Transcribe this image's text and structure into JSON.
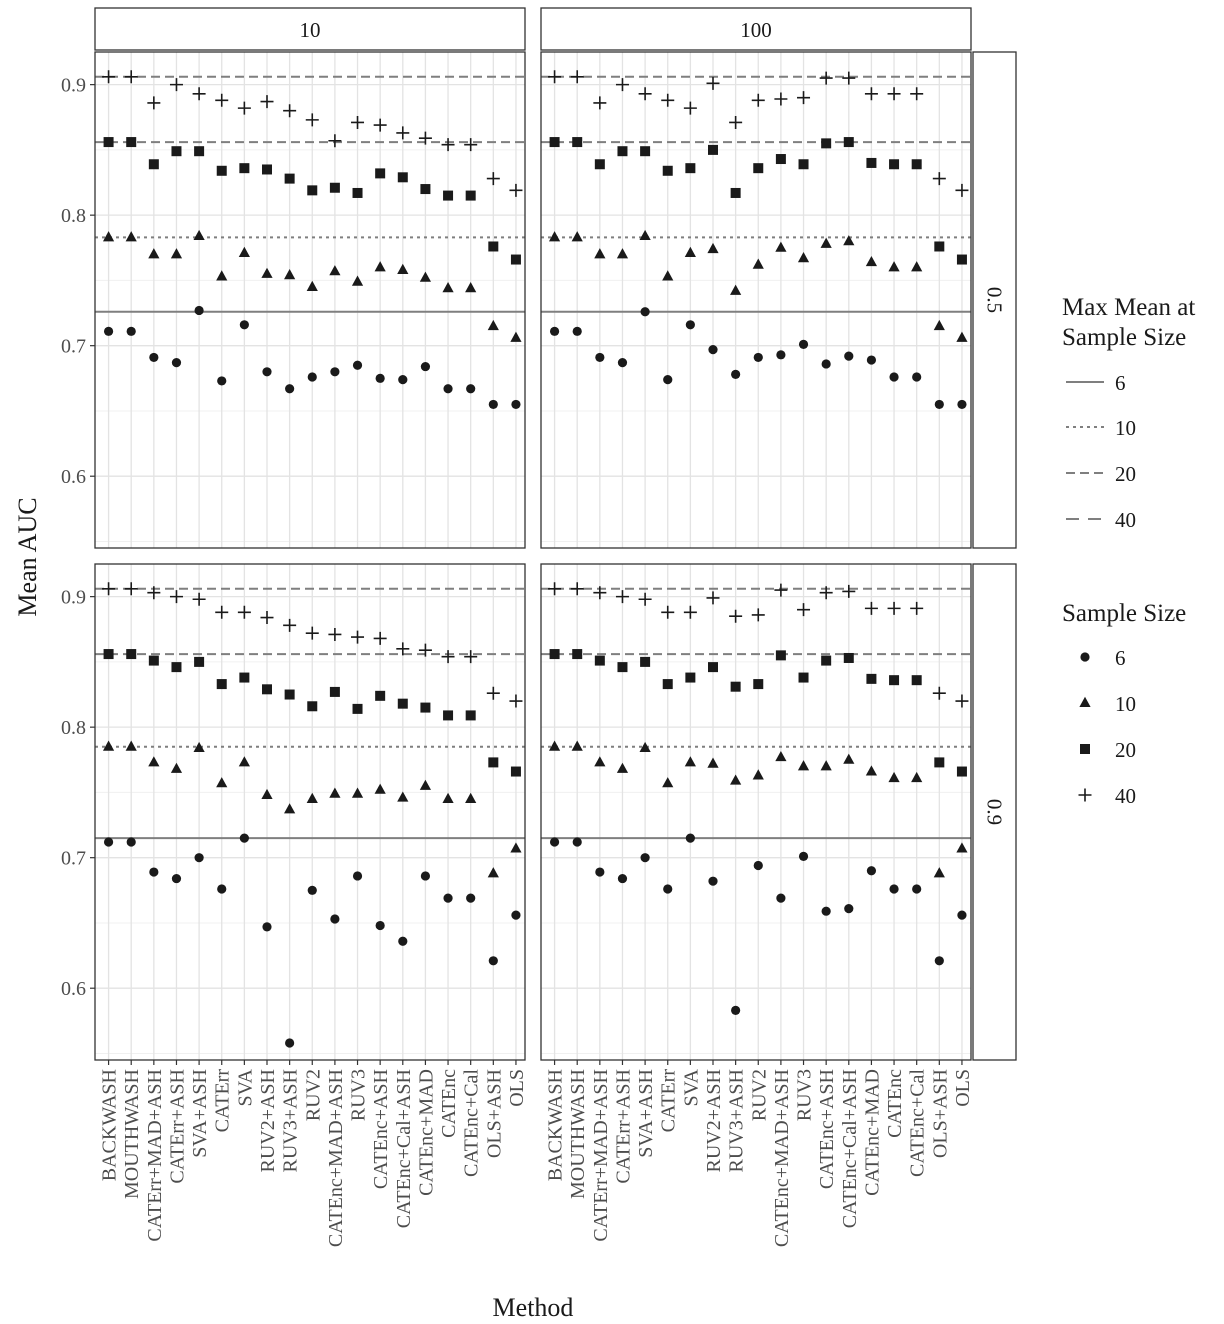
{
  "chart_data": {
    "type": "scatter",
    "xlabel": "Method",
    "ylabel": "Mean AUC",
    "ylim": [
      0.545,
      0.925
    ],
    "yticks": [
      0.6,
      0.7,
      0.8,
      0.9
    ],
    "grid": true,
    "facets": {
      "columns": [
        "10",
        "100"
      ],
      "rows": [
        "0.5",
        "0.9"
      ]
    },
    "categories": [
      "BACKWASH",
      "MOUTHWASH",
      "CATErr+MAD+ASH",
      "CATErr+ASH",
      "SVA+ASH",
      "CATErr",
      "SVA",
      "RUV2+ASH",
      "RUV3+ASH",
      "RUV2",
      "CATEnc+MAD+ASH",
      "RUV3",
      "CATEnc+ASH",
      "CATEnc+Cal+ASH",
      "CATEnc+MAD",
      "CATEnc",
      "CATEnc+Cal",
      "OLS+ASH",
      "OLS"
    ],
    "legend": {
      "placement": "right",
      "lines_title": "Max Mean at Sample Size",
      "lines": [
        {
          "label": "6",
          "style": "solid"
        },
        {
          "label": "10",
          "style": "dotted"
        },
        {
          "label": "20",
          "style": "dashed"
        },
        {
          "label": "40",
          "style": "longdash"
        }
      ],
      "shapes_title": "Sample Size",
      "shapes": [
        {
          "label": "6",
          "shape": "circle"
        },
        {
          "label": "10",
          "shape": "triangle"
        },
        {
          "label": "20",
          "shape": "square"
        },
        {
          "label": "40",
          "shape": "plus"
        }
      ]
    },
    "panels": [
      {
        "col": "10",
        "row": "0.5",
        "hlines": {
          "6": 0.726,
          "10": 0.783,
          "20": 0.856,
          "40": 0.906
        },
        "series": [
          {
            "name": "6",
            "values": [
              0.711,
              0.711,
              0.691,
              0.687,
              0.727,
              0.673,
              0.716,
              0.68,
              0.667,
              0.676,
              0.68,
              0.685,
              0.675,
              0.674,
              0.684,
              0.667,
              0.667,
              0.655,
              0.655
            ]
          },
          {
            "name": "10",
            "values": [
              0.783,
              0.783,
              0.77,
              0.77,
              0.784,
              0.753,
              0.771,
              0.755,
              0.754,
              0.745,
              0.757,
              0.749,
              0.76,
              0.758,
              0.752,
              0.744,
              0.744,
              0.715,
              0.706
            ]
          },
          {
            "name": "20",
            "values": [
              0.856,
              0.856,
              0.839,
              0.849,
              0.849,
              0.834,
              0.836,
              0.835,
              0.828,
              0.819,
              0.821,
              0.817,
              0.832,
              0.829,
              0.82,
              0.815,
              0.815,
              0.776,
              0.766
            ]
          },
          {
            "name": "40",
            "values": [
              0.906,
              0.906,
              0.886,
              0.9,
              0.893,
              0.888,
              0.882,
              0.887,
              0.88,
              0.873,
              0.857,
              0.871,
              0.869,
              0.863,
              0.859,
              0.854,
              0.854,
              0.828,
              0.819
            ]
          }
        ]
      },
      {
        "col": "100",
        "row": "0.5",
        "hlines": {
          "6": 0.726,
          "10": 0.783,
          "20": 0.856,
          "40": 0.906
        },
        "series": [
          {
            "name": "6",
            "values": [
              0.711,
              0.711,
              0.691,
              0.687,
              0.726,
              0.674,
              0.716,
              0.697,
              0.678,
              0.691,
              0.693,
              0.701,
              0.686,
              0.692,
              0.689,
              0.676,
              0.676,
              0.655,
              0.655
            ]
          },
          {
            "name": "10",
            "values": [
              0.783,
              0.783,
              0.77,
              0.77,
              0.784,
              0.753,
              0.771,
              0.774,
              0.742,
              0.762,
              0.775,
              0.767,
              0.778,
              0.78,
              0.764,
              0.76,
              0.76,
              0.715,
              0.706
            ]
          },
          {
            "name": "20",
            "values": [
              0.856,
              0.856,
              0.839,
              0.849,
              0.849,
              0.834,
              0.836,
              0.85,
              0.817,
              0.836,
              0.843,
              0.839,
              0.855,
              0.856,
              0.84,
              0.839,
              0.839,
              0.776,
              0.766
            ]
          },
          {
            "name": "40",
            "values": [
              0.906,
              0.906,
              0.886,
              0.9,
              0.893,
              0.888,
              0.882,
              0.901,
              0.871,
              0.888,
              0.889,
              0.89,
              0.905,
              0.905,
              0.893,
              0.893,
              0.893,
              0.828,
              0.819
            ]
          }
        ]
      },
      {
        "col": "10",
        "row": "0.9",
        "hlines": {
          "6": 0.715,
          "10": 0.785,
          "20": 0.856,
          "40": 0.906
        },
        "series": [
          {
            "name": "6",
            "values": [
              0.712,
              0.712,
              0.689,
              0.684,
              0.7,
              0.676,
              0.715,
              0.647,
              0.558,
              0.675,
              0.653,
              0.686,
              0.648,
              0.636,
              0.686,
              0.669,
              0.669,
              0.621,
              0.656
            ]
          },
          {
            "name": "10",
            "values": [
              0.785,
              0.785,
              0.773,
              0.768,
              0.784,
              0.757,
              0.773,
              0.748,
              0.737,
              0.745,
              0.749,
              0.749,
              0.752,
              0.746,
              0.755,
              0.745,
              0.745,
              0.688,
              0.707
            ]
          },
          {
            "name": "20",
            "values": [
              0.856,
              0.856,
              0.851,
              0.846,
              0.85,
              0.833,
              0.838,
              0.829,
              0.825,
              0.816,
              0.827,
              0.814,
              0.824,
              0.818,
              0.815,
              0.809,
              0.809,
              0.773,
              0.766
            ]
          },
          {
            "name": "40",
            "values": [
              0.906,
              0.906,
              0.903,
              0.9,
              0.898,
              0.888,
              0.888,
              0.884,
              0.878,
              0.872,
              0.871,
              0.869,
              0.868,
              0.86,
              0.859,
              0.854,
              0.854,
              0.826,
              0.82
            ]
          }
        ]
      },
      {
        "col": "100",
        "row": "0.9",
        "hlines": {
          "6": 0.715,
          "10": 0.785,
          "20": 0.856,
          "40": 0.906
        },
        "series": [
          {
            "name": "6",
            "values": [
              0.712,
              0.712,
              0.689,
              0.684,
              0.7,
              0.676,
              0.715,
              0.682,
              0.583,
              0.694,
              0.669,
              0.701,
              0.659,
              0.661,
              0.69,
              0.676,
              0.676,
              0.621,
              0.656
            ]
          },
          {
            "name": "10",
            "values": [
              0.785,
              0.785,
              0.773,
              0.768,
              0.784,
              0.757,
              0.773,
              0.772,
              0.759,
              0.763,
              0.777,
              0.77,
              0.77,
              0.775,
              0.766,
              0.761,
              0.761,
              0.688,
              0.707
            ]
          },
          {
            "name": "20",
            "values": [
              0.856,
              0.856,
              0.851,
              0.846,
              0.85,
              0.833,
              0.838,
              0.846,
              0.831,
              0.833,
              0.855,
              0.838,
              0.851,
              0.853,
              0.837,
              0.836,
              0.836,
              0.773,
              0.766
            ]
          },
          {
            "name": "40",
            "values": [
              0.906,
              0.906,
              0.903,
              0.9,
              0.898,
              0.888,
              0.888,
              0.899,
              0.885,
              0.886,
              0.905,
              0.89,
              0.903,
              0.904,
              0.891,
              0.891,
              0.891,
              0.826,
              0.82
            ]
          }
        ]
      }
    ]
  }
}
